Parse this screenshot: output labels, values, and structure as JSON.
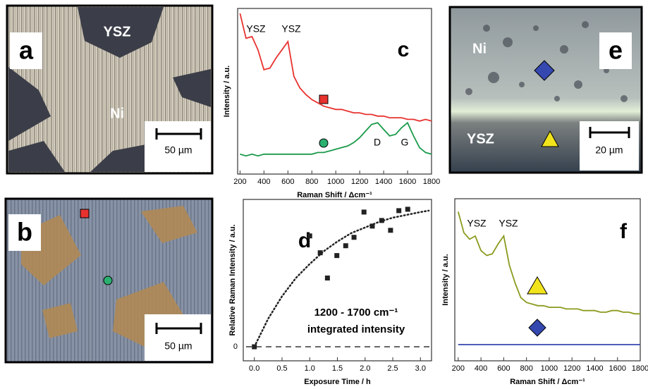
{
  "micrographs": [
    {
      "panel_label": "a",
      "labels": [
        "YSZ",
        "Ni"
      ],
      "scale_bar": "50 µm"
    },
    {
      "panel_label": "b",
      "scale_bar": "50 µm"
    },
    {
      "panel_label": "e",
      "labels": [
        "Ni",
        "YSZ"
      ],
      "scale_bar": "20 µm"
    }
  ],
  "chart_data": [
    {
      "type": "line",
      "panel_label": "c",
      "xlabel": "Raman Shift / Δcm⁻¹",
      "ylabel": "Intensity / a.u.",
      "annotations": [
        "YSZ",
        "YSZ",
        "D",
        "G"
      ],
      "x": [
        200,
        250,
        300,
        350,
        400,
        450,
        500,
        550,
        600,
        650,
        700,
        750,
        800,
        850,
        900,
        950,
        1000,
        1050,
        1100,
        1150,
        1200,
        1250,
        1300,
        1350,
        1400,
        1450,
        1500,
        1550,
        1600,
        1650,
        1700,
        1750,
        1800
      ],
      "series": [
        {
          "color": "#e8322f",
          "values": [
            97,
            82,
            83,
            75,
            63,
            64,
            70,
            75,
            80,
            59,
            52,
            48,
            45,
            43,
            41,
            40,
            39,
            39,
            38,
            37,
            37,
            36,
            36,
            35,
            35,
            34,
            34,
            34,
            33,
            33,
            32,
            33,
            32
          ]
        },
        {
          "color": "#1a9a4a",
          "values": [
            12,
            11,
            12,
            11,
            12,
            12,
            12,
            12,
            12,
            12,
            12,
            12,
            12,
            13,
            13,
            14,
            15,
            16,
            17,
            19,
            22,
            26,
            30,
            31,
            27,
            23,
            24,
            28,
            31,
            23,
            16,
            13,
            12
          ]
        }
      ],
      "xlim": [
        180,
        1800
      ],
      "xticks": [
        200,
        400,
        600,
        800,
        1000,
        1200,
        1400,
        1600,
        1800
      ],
      "ylim": [
        0,
        100
      ]
    },
    {
      "type": "scatter",
      "panel_label": "d",
      "xlabel": "Exposure Time / h",
      "ylabel": "Relative Raman Intensity / a.u.",
      "texts": [
        "1200 - 1700 cm⁻¹",
        "integrated intensity"
      ],
      "series": [
        {
          "marker": "square",
          "color": "#222222",
          "x": [
            0,
            1.0,
            1.19,
            1.32,
            1.49,
            1.65,
            1.8,
            1.98,
            2.13,
            2.3,
            2.46,
            2.61,
            2.77
          ],
          "values": [
            0,
            0.79,
            0.67,
            0.49,
            0.65,
            0.72,
            0.78,
            0.96,
            0.86,
            0.9,
            0.83,
            0.97,
            0.98
          ]
        },
        {
          "style": "dotted",
          "color": "#222222",
          "x": [
            0,
            0.25,
            0.5,
            0.75,
            1.0,
            1.25,
            1.5,
            1.75,
            2.0,
            2.25,
            2.5,
            2.75,
            3.0,
            3.15
          ],
          "values": [
            0,
            0.2,
            0.36,
            0.49,
            0.59,
            0.68,
            0.75,
            0.81,
            0.85,
            0.89,
            0.92,
            0.94,
            0.96,
            0.97
          ]
        }
      ],
      "xlim": [
        -0.2,
        3.2
      ],
      "xticks": [
        {
          "value": 0,
          "label": "0.0"
        },
        0.5,
        {
          "value": 1,
          "label": "1.0"
        },
        1.5,
        {
          "value": 2,
          "label": "2.0"
        },
        2.5,
        {
          "value": 3,
          "label": "3.0"
        }
      ],
      "ylim": [
        -0.1,
        1.05
      ],
      "yticks": [
        0
      ]
    },
    {
      "type": "line",
      "panel_label": "f",
      "xlabel": "Raman Shift / Δcm⁻¹",
      "ylabel": "Intensity / a.u.",
      "annotations": [
        "YSZ",
        "YSZ"
      ],
      "x": [
        200,
        250,
        300,
        350,
        400,
        450,
        500,
        550,
        600,
        650,
        700,
        750,
        800,
        850,
        900,
        950,
        1000,
        1050,
        1100,
        1150,
        1200,
        1250,
        1300,
        1350,
        1400,
        1450,
        1500,
        1550,
        1600,
        1650,
        1700,
        1750,
        1800
      ],
      "series": [
        {
          "color": "#8c9a1e",
          "values": [
            92,
            79,
            75,
            77,
            68,
            65,
            66,
            72,
            77,
            59,
            48,
            39,
            36,
            35,
            34,
            34,
            33,
            33,
            33,
            32,
            32,
            32,
            31,
            31,
            31,
            30,
            30,
            31,
            31,
            30,
            30,
            29,
            29
          ]
        },
        {
          "color": "#3548b0",
          "values": [
            10,
            10,
            10,
            10,
            10,
            10,
            10,
            10,
            10,
            10,
            10,
            10,
            10,
            10,
            10,
            10,
            10,
            10,
            10,
            10,
            10,
            10,
            10,
            10,
            10,
            10,
            10,
            10,
            10,
            10,
            10,
            10,
            10
          ]
        }
      ],
      "xlim": [
        170,
        1800
      ],
      "xticks": [
        200,
        400,
        600,
        800,
        1000,
        1200,
        1400,
        1600,
        1800
      ],
      "ylim": [
        0,
        100
      ]
    }
  ]
}
